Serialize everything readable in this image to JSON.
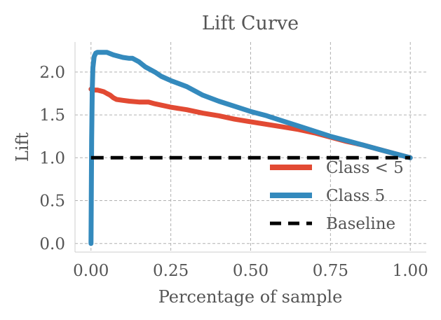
{
  "chart_data": {
    "type": "line",
    "title": "Lift Curve",
    "xlabel": "Percentage of sample",
    "ylabel": "Lift",
    "xlim": [
      -0.05,
      1.05
    ],
    "ylim": [
      -0.1,
      2.35
    ],
    "xticks": [
      0.0,
      0.25,
      0.5,
      0.75,
      1.0
    ],
    "xtick_labels": [
      "0.00",
      "0.25",
      "0.50",
      "0.75",
      "1.00"
    ],
    "yticks": [
      0.0,
      0.5,
      1.0,
      1.5,
      2.0
    ],
    "ytick_labels": [
      "0.0",
      "0.5",
      "1.0",
      "1.5",
      "2.0"
    ],
    "grid": true,
    "legend_position": "lower-right",
    "series": [
      {
        "name": "Class < 5",
        "color": "#e24a33",
        "x": [
          0.0,
          0.005,
          0.01,
          0.02,
          0.03,
          0.04,
          0.05,
          0.06,
          0.07,
          0.08,
          0.1,
          0.12,
          0.15,
          0.18,
          0.2,
          0.25,
          0.3,
          0.35,
          0.4,
          0.45,
          0.5,
          0.55,
          0.6,
          0.65,
          0.7,
          0.75,
          0.8,
          0.85,
          0.9,
          0.95,
          1.0
        ],
        "y": [
          1.8,
          1.8,
          1.79,
          1.79,
          1.78,
          1.77,
          1.75,
          1.73,
          1.7,
          1.68,
          1.67,
          1.66,
          1.65,
          1.65,
          1.63,
          1.59,
          1.56,
          1.52,
          1.49,
          1.45,
          1.42,
          1.39,
          1.36,
          1.33,
          1.29,
          1.24,
          1.19,
          1.15,
          1.1,
          1.05,
          1.0
        ]
      },
      {
        "name": "Class 5",
        "color": "#348abd",
        "x": [
          0.0,
          0.002,
          0.004,
          0.006,
          0.01,
          0.015,
          0.02,
          0.03,
          0.05,
          0.07,
          0.1,
          0.12,
          0.13,
          0.15,
          0.17,
          0.2,
          0.22,
          0.25,
          0.3,
          0.35,
          0.4,
          0.45,
          0.5,
          0.55,
          0.6,
          0.65,
          0.7,
          0.75,
          0.8,
          0.85,
          0.9,
          0.95,
          1.0
        ],
        "y": [
          0.0,
          1.2,
          1.8,
          2.05,
          2.18,
          2.22,
          2.23,
          2.23,
          2.23,
          2.2,
          2.17,
          2.16,
          2.16,
          2.12,
          2.06,
          2.0,
          1.95,
          1.9,
          1.83,
          1.73,
          1.66,
          1.6,
          1.54,
          1.49,
          1.43,
          1.37,
          1.31,
          1.25,
          1.2,
          1.15,
          1.1,
          1.05,
          1.0
        ]
      },
      {
        "name": "Baseline",
        "color": "#000000",
        "dashed": true,
        "x": [
          0.0,
          1.0
        ],
        "y": [
          1.0,
          1.0
        ]
      }
    ]
  }
}
